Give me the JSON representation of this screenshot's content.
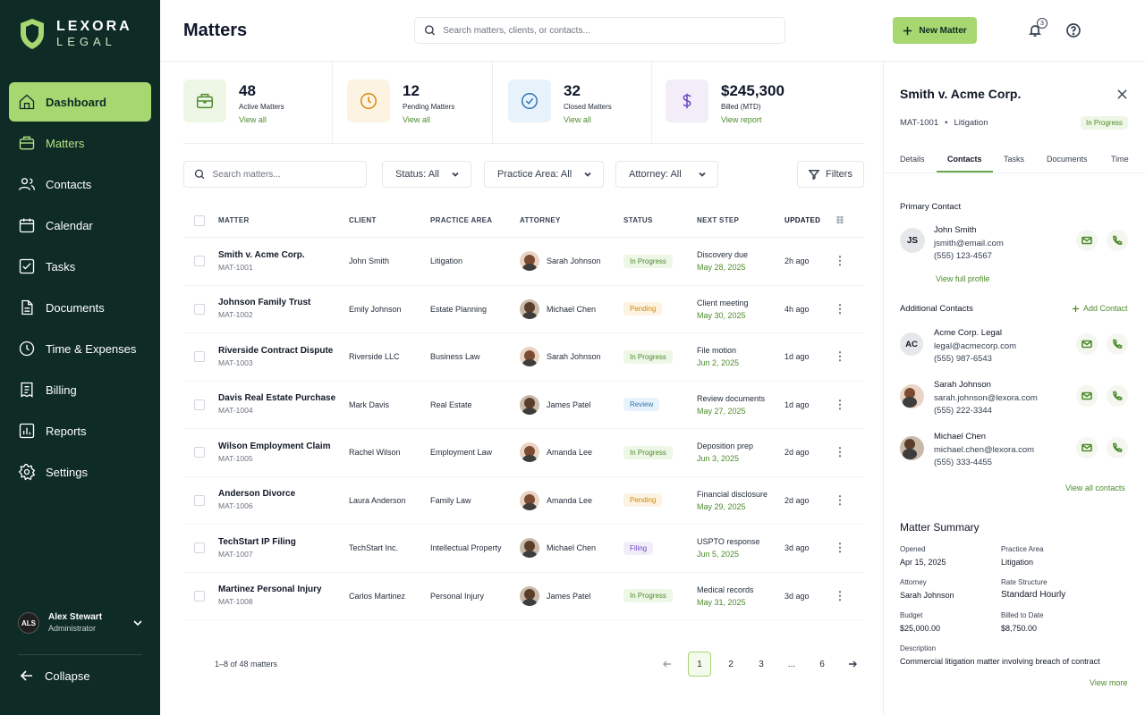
{
  "brand": {
    "name_line1": "LEXORA",
    "name_line2": "LEGAL"
  },
  "sidebar": {
    "items": [
      {
        "label": "Dashboard",
        "icon": "home-icon"
      },
      {
        "label": "Matters",
        "icon": "briefcase-icon"
      },
      {
        "label": "Contacts",
        "icon": "users-icon"
      },
      {
        "label": "Calendar",
        "icon": "calendar-icon"
      },
      {
        "label": "Tasks",
        "icon": "checklist-icon"
      },
      {
        "label": "Documents",
        "icon": "document-icon"
      },
      {
        "label": "Time & Expenses",
        "icon": "clock-icon"
      },
      {
        "label": "Billing",
        "icon": "receipt-icon"
      },
      {
        "label": "Reports",
        "icon": "bar-chart-icon"
      },
      {
        "label": "Settings",
        "icon": "gear-icon"
      }
    ],
    "user": {
      "initials": "ALS",
      "name": "Alex Stewart",
      "role": "Administrator"
    },
    "collapse_label": "Collapse"
  },
  "header": {
    "title": "Matters",
    "search_placeholder": "Search matters, clients, or contacts...",
    "new_button": "New Matter",
    "notification_count": "3"
  },
  "stats": [
    {
      "value": "48",
      "label": "Active Matters",
      "link": "View all",
      "accent": "#4d8b2b",
      "bg": "#eef7e6"
    },
    {
      "value": "12",
      "label": "Pending Matters",
      "link": "View all",
      "accent": "#d48806",
      "bg": "#fdf3e2"
    },
    {
      "value": "32",
      "label": "Closed Matters",
      "link": "View all",
      "accent": "#2f74b5",
      "bg": "#e8f2fb"
    },
    {
      "value": "$245,300",
      "label": "Billed (MTD)",
      "link": "View report",
      "accent": "#6b46c1",
      "bg": "#f2edf9"
    }
  ],
  "toolbar": {
    "search_placeholder": "Search matters...",
    "status_filter": "Status: All",
    "practice_filter": "Practice Area: All",
    "attorney_filter": "Attorney: All",
    "filters_label": "Filters"
  },
  "table": {
    "columns": [
      "MATTER",
      "CLIENT",
      "PRACTICE AREA",
      "ATTORNEY",
      "STATUS",
      "NEXT STEP",
      "UPDATED"
    ],
    "rows": [
      {
        "title": "Smith v. Acme Corp.",
        "id": "MAT-1001",
        "client": "John Smith",
        "area": "Litigation",
        "attorney": "Sarah Johnson",
        "status": "In Progress",
        "next": "Discovery due",
        "due": "May 28, 2025",
        "updated": "2h ago"
      },
      {
        "title": "Johnson Family Trust",
        "id": "MAT-1002",
        "client": "Emily Johnson",
        "area": "Estate Planning",
        "attorney": "Michael Chen",
        "status": "Pending",
        "next": "Client meeting",
        "due": "May 30, 2025",
        "updated": "4h ago"
      },
      {
        "title": "Riverside Contract Dispute",
        "id": "MAT-1003",
        "client": "Riverside LLC",
        "area": "Business Law",
        "attorney": "Sarah Johnson",
        "status": "In Progress",
        "next": "File motion",
        "due": "Jun 2, 2025",
        "updated": "1d ago"
      },
      {
        "title": "Davis Real Estate Purchase",
        "id": "MAT-1004",
        "client": "Mark Davis",
        "area": "Real Estate",
        "attorney": "James Patel",
        "status": "Review",
        "next": "Review documents",
        "due": "May 27, 2025",
        "updated": "1d ago"
      },
      {
        "title": "Wilson Employment Claim",
        "id": "MAT-1005",
        "client": "Rachel Wilson",
        "area": "Employment Law",
        "attorney": "Amanda Lee",
        "status": "In Progress",
        "next": "Deposition prep",
        "due": "Jun 3, 2025",
        "updated": "2d ago"
      },
      {
        "title": "Anderson Divorce",
        "id": "MAT-1006",
        "client": "Laura Anderson",
        "area": "Family Law",
        "attorney": "Amanda Lee",
        "status": "Pending",
        "next": "Financial disclosure",
        "due": "May 29, 2025",
        "updated": "2d ago"
      },
      {
        "title": "TechStart IP Filing",
        "id": "MAT-1007",
        "client": "TechStart Inc.",
        "area": "Intellectual Property",
        "attorney": "Michael Chen",
        "status": "Filing",
        "next": "USPTO response",
        "due": "Jun 5, 2025",
        "updated": "3d ago"
      },
      {
        "title": "Martinez Personal Injury",
        "id": "MAT-1008",
        "client": "Carlos Martinez",
        "area": "Personal Injury",
        "attorney": "James Patel",
        "status": "In Progress",
        "next": "Medical records",
        "due": "May 31, 2025",
        "updated": "3d ago"
      }
    ]
  },
  "pager": {
    "info": "1–8 of 48 matters",
    "pages": [
      "1",
      "2",
      "3",
      "...",
      "6"
    ]
  },
  "panel": {
    "title": "Smith v. Acme Corp.",
    "id": "MAT-1001",
    "type": "Litigation",
    "status": "In Progress",
    "tabs": [
      "Details",
      "Contacts",
      "Tasks",
      "Documents",
      "Time"
    ],
    "primary_heading": "Primary Contact",
    "primary": {
      "initials": "JS",
      "name": "John Smith",
      "email": "jsmith@email.com",
      "phone": "(555) 123-4567",
      "link": "View full profile"
    },
    "additional_heading": "Additional Contacts",
    "add_contact": "Add Contact",
    "contacts": [
      {
        "initials": "AC",
        "name": "Acme Corp. Legal",
        "email": "legal@acmecorp.com",
        "phone": "(555) 987-6543"
      },
      {
        "initials": "",
        "name": "Sarah Johnson",
        "email": "sarah.johnson@lexora.com",
        "phone": "(555) 222-3344"
      },
      {
        "initials": "",
        "name": "Michael Chen",
        "email": "michael.chen@lexora.com",
        "phone": "(555) 333-4455"
      }
    ],
    "view_all": "View all contacts",
    "summary_heading": "Matter Summary",
    "summary": {
      "opened_label": "Opened",
      "opened": "Apr 15, 2025",
      "area_label": "Practice Area",
      "area": "Litigation",
      "attorney_label": "Attorney",
      "attorney": "Sarah Johnson",
      "rate_label": "Rate Structure",
      "rate": "Standard Hourly",
      "budget_label": "Budget",
      "budget": "$25,000.00",
      "billed_label": "Billed to Date",
      "billed": "$8,750.00",
      "desc_label": "Description",
      "desc": "Commercial litigation matter involving breach of contract",
      "more": "View more"
    }
  }
}
